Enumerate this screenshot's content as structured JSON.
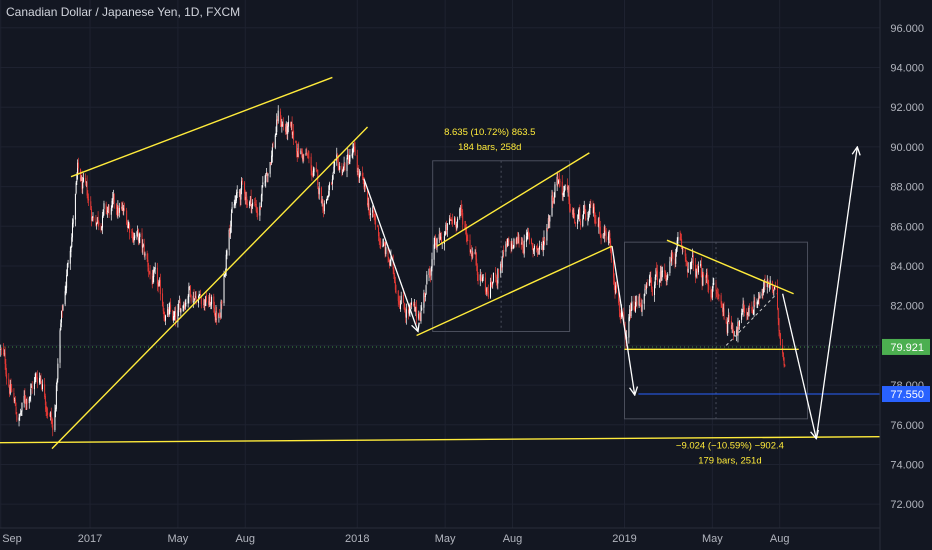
{
  "header": {
    "title": "Canadian Dollar / Japanese Yen, 1D, FXCM"
  },
  "colors": {
    "background": "#131722",
    "grid": "#1e2230",
    "up_candle": "#ffffff",
    "down_candle": "#e53935",
    "drawing": "#ffeb3b",
    "arrow": "#ffffff",
    "last_price_badge": "#4caf50",
    "marker_badge": "#2962ff",
    "axis_text": "#b2b5be"
  },
  "chart_data": {
    "type": "candlestick",
    "title": "Canadian Dollar / Japanese Yen, 1D, FXCM",
    "y_axis": {
      "ticks": [
        72,
        74,
        76,
        78,
        80,
        82,
        84,
        86,
        88,
        90,
        92,
        94,
        96
      ],
      "tick_labels": [
        "72.000",
        "74.000",
        "76.000",
        "78.000",
        "80.000",
        "82.000",
        "84.000",
        "86.000",
        "88.000",
        "90.000",
        "92.000",
        "94.000",
        "96.000"
      ],
      "range": [
        70.8,
        97.4
      ]
    },
    "x_axis": {
      "tick_labels": [
        "Sep",
        "2017",
        "May",
        "Aug",
        "2018",
        "May",
        "Aug",
        "2019",
        "May",
        "Aug"
      ],
      "tick_dates": [
        "2016-09-01",
        "2017-01-01",
        "2017-05-01",
        "2017-08-01",
        "2018-01-01",
        "2018-05-01",
        "2018-08-01",
        "2019-01-01",
        "2019-05-01",
        "2019-08-01"
      ],
      "range": [
        "2016-08-31",
        "2019-12-16"
      ]
    },
    "price_path": [
      [
        "2016-08-31",
        79.8
      ],
      [
        "2016-09-10",
        78.6
      ],
      [
        "2016-09-25",
        76.2
      ],
      [
        "2016-10-10",
        77.8
      ],
      [
        "2016-10-25",
        78.6
      ],
      [
        "2016-11-08",
        76.6
      ],
      [
        "2016-11-12",
        75.3
      ],
      [
        "2016-11-20",
        80.2
      ],
      [
        "2016-12-05",
        85.2
      ],
      [
        "2016-12-15",
        88.5
      ],
      [
        "2017-01-05",
        86.5
      ],
      [
        "2017-02-10",
        86.8
      ],
      [
        "2017-03-05",
        85.6
      ],
      [
        "2017-04-10",
        82.0
      ],
      [
        "2017-04-28",
        81.0
      ],
      [
        "2017-05-15",
        83.0
      ],
      [
        "2017-06-10",
        82.3
      ],
      [
        "2017-06-28",
        81.3
      ],
      [
        "2017-07-10",
        86.5
      ],
      [
        "2017-07-28",
        87.8
      ],
      [
        "2017-08-20",
        86.8
      ],
      [
        "2017-09-15",
        91.5
      ],
      [
        "2017-10-05",
        90.3
      ],
      [
        "2017-10-25",
        89.3
      ],
      [
        "2017-11-15",
        87.3
      ],
      [
        "2017-12-05",
        88.6
      ],
      [
        "2017-12-26",
        89.6
      ],
      [
        "2018-01-10",
        87.6
      ],
      [
        "2018-02-10",
        84.5
      ],
      [
        "2018-03-05",
        82.2
      ],
      [
        "2018-03-24",
        81.2
      ],
      [
        "2018-04-15",
        84.6
      ],
      [
        "2018-05-05",
        85.8
      ],
      [
        "2018-05-20",
        86.8
      ],
      [
        "2018-06-10",
        84.6
      ],
      [
        "2018-06-28",
        82.6
      ],
      [
        "2018-07-20",
        84.5
      ],
      [
        "2018-08-15",
        85.4
      ],
      [
        "2018-09-10",
        84.8
      ],
      [
        "2018-10-01",
        88.8
      ],
      [
        "2018-10-25",
        86.2
      ],
      [
        "2018-11-25",
        86.4
      ],
      [
        "2018-12-12",
        85.3
      ],
      [
        "2018-12-28",
        81.5
      ],
      [
        "2019-01-03",
        79.4
      ],
      [
        "2019-01-10",
        81.6
      ],
      [
        "2019-02-10",
        83.0
      ],
      [
        "2019-03-15",
        84.8
      ],
      [
        "2019-04-10",
        83.6
      ],
      [
        "2019-05-01",
        83.0
      ],
      [
        "2019-05-25",
        81.0
      ],
      [
        "2019-06-10",
        81.4
      ],
      [
        "2019-07-05",
        82.7
      ],
      [
        "2019-07-18",
        83.0
      ],
      [
        "2019-07-25",
        82.4
      ],
      [
        "2019-08-05",
        80.0
      ],
      [
        "2019-08-08",
        79.4
      ]
    ],
    "lines": [
      {
        "points": [
          [
            "2016-12-06",
            88.5
          ],
          [
            "2017-11-28",
            93.5
          ]
        ]
      },
      {
        "points": [
          [
            "2016-11-10",
            74.8
          ],
          [
            "2018-01-15",
            91.0
          ]
        ]
      },
      {
        "points": [
          [
            "2016-08-31",
            75.1
          ],
          [
            "2019-12-16",
            75.4
          ]
        ]
      },
      {
        "points": [
          [
            "2018-03-23",
            80.5
          ],
          [
            "2018-12-15",
            85.0
          ]
        ]
      },
      {
        "points": [
          [
            "2018-04-20",
            85.0
          ],
          [
            "2018-11-14",
            89.7
          ]
        ]
      },
      {
        "points": [
          [
            "2019-02-28",
            85.3
          ],
          [
            "2019-08-20",
            82.6
          ]
        ]
      },
      {
        "points": [
          [
            "2019-01-01",
            79.8
          ],
          [
            "2019-08-27",
            79.8
          ]
        ]
      }
    ],
    "dashed_lines": [
      {
        "points": [
          [
            "2019-05-20",
            80.0
          ],
          [
            "2019-07-28",
            82.6
          ]
        ]
      }
    ],
    "arrows": [
      {
        "points": [
          [
            "2018-01-10",
            88.4
          ],
          [
            "2018-03-25",
            80.7
          ]
        ]
      },
      {
        "points": [
          [
            "2018-12-15",
            85.0
          ],
          [
            "2019-01-15",
            77.5
          ]
        ]
      },
      {
        "points": [
          [
            "2019-08-05",
            82.6
          ],
          [
            "2019-09-20",
            75.3
          ]
        ]
      },
      {
        "points": [
          [
            "2019-09-20",
            75.3
          ],
          [
            "2019-11-15",
            90.0
          ]
        ]
      }
    ],
    "measure_boxes": [
      {
        "from": [
          "2018-04-14",
          80.7
        ],
        "to": [
          "2018-10-18",
          89.3
        ]
      },
      {
        "from": [
          "2019-01-01",
          76.3
        ],
        "to": [
          "2019-09-08",
          85.2
        ]
      }
    ],
    "measure_labels": [
      {
        "at": [
          "2018-07-01",
          90.6
        ],
        "lines": [
          "8.635 (10.72%) 863.5",
          "184 bars, 258d"
        ]
      },
      {
        "at": [
          "2019-05-25",
          74.8
        ],
        "lines": [
          "−9.024 (−10.59%) −902.4",
          "179 bars, 251d"
        ]
      }
    ],
    "ref_lines": [
      {
        "y": 79.921,
        "style": "dotted",
        "color": "#4caf50"
      },
      {
        "y": 77.55,
        "style": "solid",
        "from": "2019-01-20",
        "color": "#2962ff"
      }
    ],
    "price_badges": [
      {
        "value": 79.921,
        "label": "79.921",
        "color": "#4caf50"
      },
      {
        "value": 77.55,
        "label": "77.550",
        "color": "#2962ff"
      }
    ],
    "grid": true
  }
}
